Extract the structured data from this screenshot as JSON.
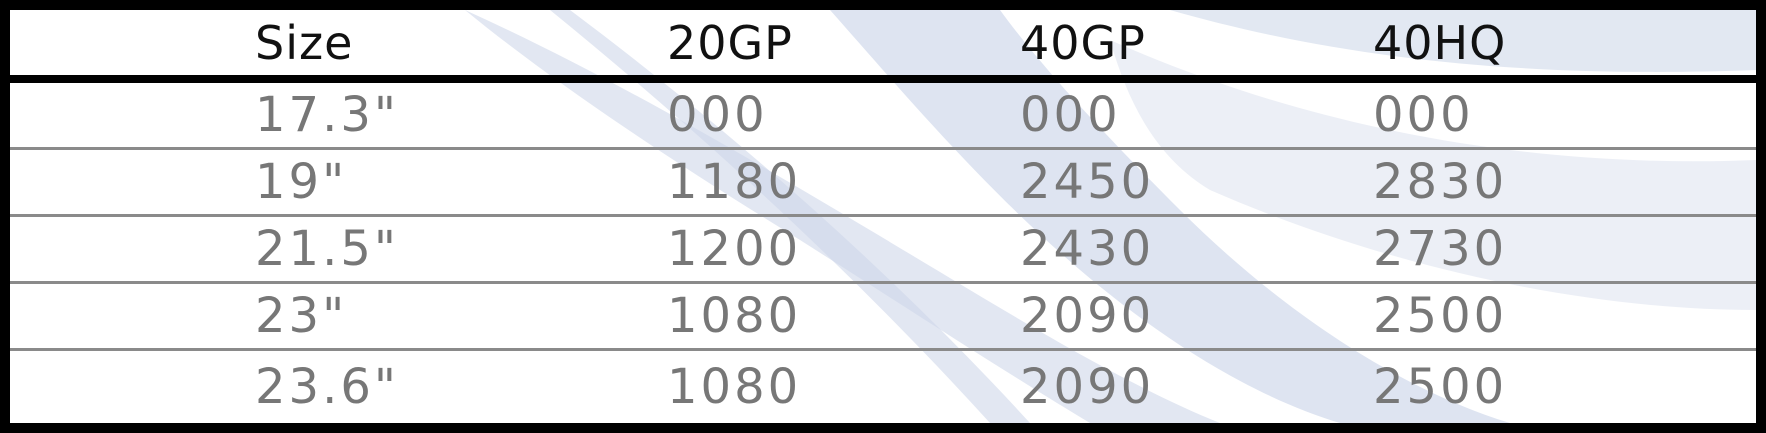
{
  "colors": {
    "border": "#000000",
    "header_text": "#111111",
    "body_text": "#777777",
    "row_divider": "#8a8a8a",
    "background_swoosh": "#dfe5f1"
  },
  "table": {
    "headers": [
      "Size",
      "20GP",
      "40GP",
      "40HQ"
    ],
    "rows": [
      [
        "17.3\"",
        "000",
        "000",
        "000"
      ],
      [
        "19\"",
        "1180",
        "2450",
        "2830"
      ],
      [
        "21.5\"",
        "1200",
        "2430",
        "2730"
      ],
      [
        "23\"",
        "1080",
        "2090",
        "2500"
      ],
      [
        "23.6\"",
        "1080",
        "2090",
        "2500"
      ]
    ]
  }
}
